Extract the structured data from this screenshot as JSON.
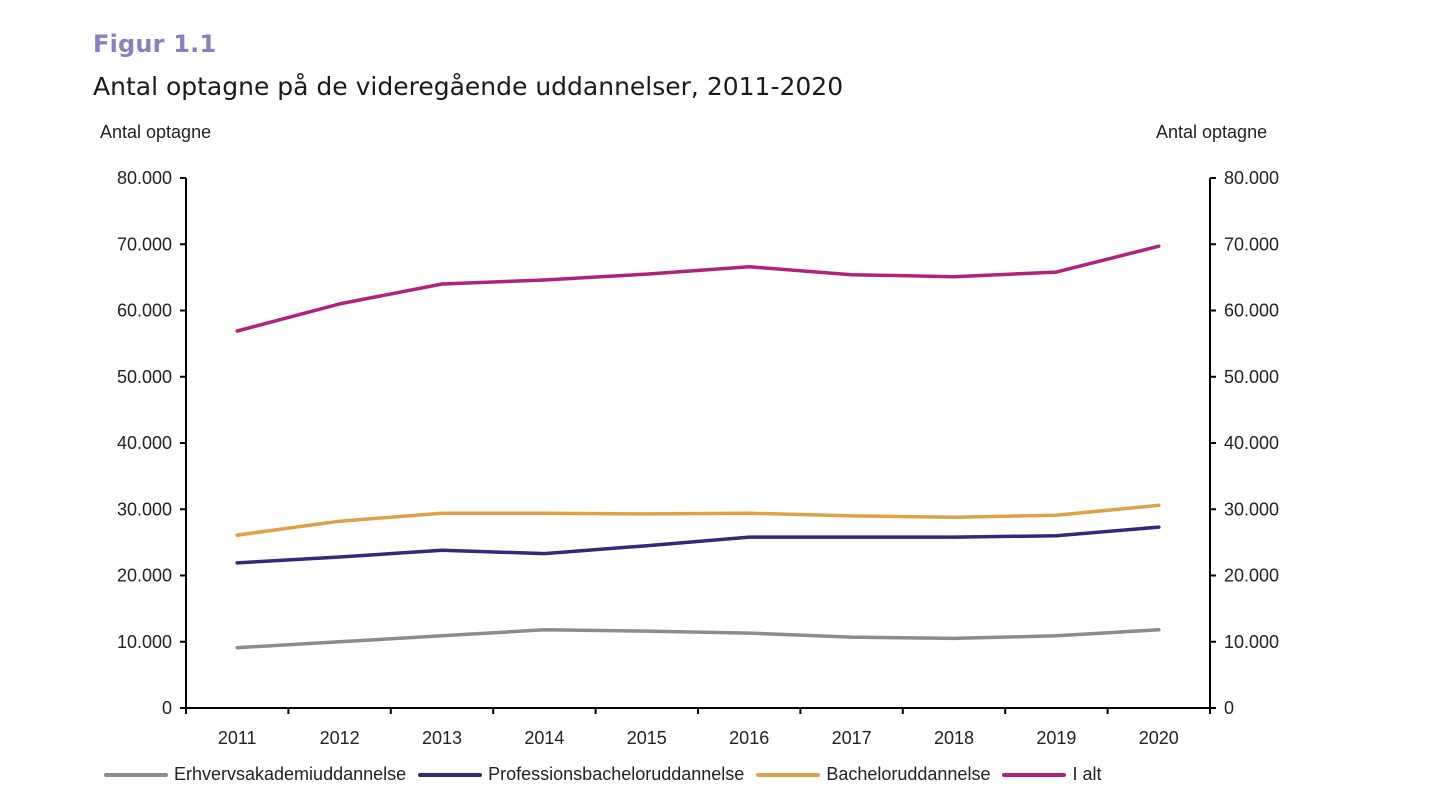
{
  "figure_label": "Figur 1.1",
  "title": "Antal optagne på de videregående uddannelser, 2011-2020",
  "chart_data": {
    "type": "line",
    "title": "Antal optagne på de videregående uddannelser, 2011-2020",
    "ylabel_left": "Antal optagne",
    "ylabel_right": "Antal optagne",
    "xlabel": "",
    "x": [
      "2011",
      "2012",
      "2013",
      "2014",
      "2015",
      "2016",
      "2017",
      "2018",
      "2019",
      "2020"
    ],
    "ylim": [
      0,
      80000
    ],
    "yticks": [
      0,
      10000,
      20000,
      30000,
      40000,
      50000,
      60000,
      70000,
      80000
    ],
    "ytick_labels": [
      "0",
      "10.000",
      "20.000",
      "30.000",
      "40.000",
      "50.000",
      "60.000",
      "70.000",
      "80.000"
    ],
    "grid": false,
    "legend_position": "bottom",
    "series": [
      {
        "name": "Erhvervsakademiuddannelse",
        "color": "#8c8c8c",
        "values": [
          9100,
          10000,
          10900,
          11800,
          11600,
          11300,
          10700,
          10500,
          10900,
          11800
        ]
      },
      {
        "name": "Professionsbacheloruddannelse",
        "color": "#2e2b7a",
        "values": [
          21900,
          22800,
          23800,
          23300,
          24500,
          25800,
          25800,
          25800,
          26000,
          27300
        ]
      },
      {
        "name": "Bacheloruddannelse",
        "color": "#e0a044",
        "values": [
          26100,
          28200,
          29400,
          29400,
          29300,
          29400,
          29000,
          28800,
          29100,
          30600
        ]
      },
      {
        "name": "I alt",
        "color": "#b0237c",
        "values": [
          56900,
          61000,
          64000,
          64600,
          65500,
          66600,
          65400,
          65100,
          65800,
          69700
        ]
      }
    ]
  }
}
